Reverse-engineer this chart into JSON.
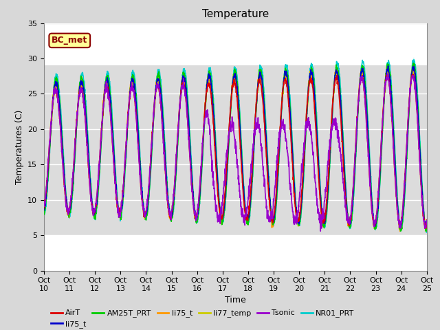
{
  "title": "Temperature",
  "xlabel": "Time",
  "ylabel": "Temperatures (C)",
  "ylim": [
    0,
    35
  ],
  "xlim": [
    0,
    15
  ],
  "fig_bg_color": "#d8d8d8",
  "plot_bg_color": "#ffffff",
  "shade_bg_color": "#dcdcdc",
  "shade_ymin": 5,
  "shade_ymax": 29,
  "annotation_text": "BC_met",
  "annotation_color": "#8B0000",
  "annotation_bg": "#ffff99",
  "legend_labels": [
    "AirT",
    "li75_t",
    "AM25T_PRT",
    "li75_t",
    "li77_temp",
    "Tsonic",
    "NR01_PRT"
  ],
  "legend_colors": [
    "#dd0000",
    "#0000cc",
    "#00cc00",
    "#ff9900",
    "#cccc00",
    "#9900cc",
    "#00cccc"
  ],
  "x_tick_labels": [
    "Oct 10",
    "Oct 11",
    "Oct 12",
    "Oct 13",
    "Oct 14",
    "Oct 15",
    "Oct 16",
    "Oct 17",
    "Oct 18",
    "Oct 19",
    "Oct 20",
    "Oct 21",
    "Oct 22",
    "Oct 23",
    "Oct 24",
    "Oct 25"
  ],
  "grid_color": "#aaaaaa",
  "figsize": [
    6.4,
    4.8
  ],
  "dpi": 100
}
